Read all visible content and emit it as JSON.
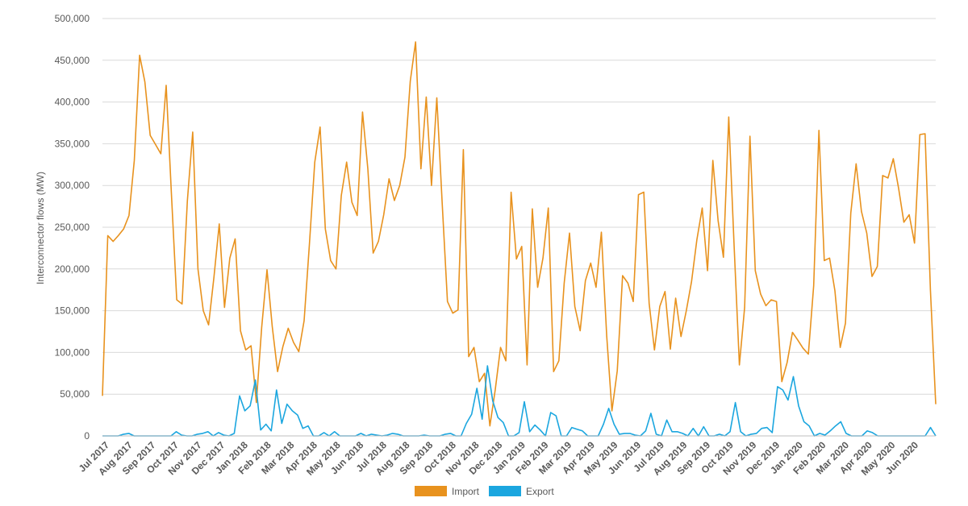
{
  "chart_data": {
    "type": "line",
    "ylabel": "Interconnector flows (MW)",
    "ylim": [
      0,
      500000
    ],
    "y_ticks": [
      "0",
      "50,000",
      "100,000",
      "150,000",
      "200,000",
      "250,000",
      "300,000",
      "350,000",
      "400,000",
      "450,000",
      "500,000"
    ],
    "y_tick_values": [
      0,
      50000,
      100000,
      150000,
      200000,
      250000,
      300000,
      350000,
      400000,
      450000,
      500000
    ],
    "x_tick_labels": [
      "Jul 2017",
      "Aug 2017",
      "Sep 2017",
      "Oct 2017",
      "Nov 2017",
      "Dec 2017",
      "Jan 2018",
      "Feb 2018",
      "Mar 2018",
      "Apr 2018",
      "May 2018",
      "Jun 2018",
      "Jul 2018",
      "Aug 2018",
      "Sep 2018",
      "Oct 2018",
      "Nov 2018",
      "Dec 2018",
      "Jan 2019",
      "Feb 2019",
      "Mar 2019",
      "Apr 2019",
      "May 2019",
      "Jun 2019",
      "Jul 2019",
      "Aug 2019",
      "Sep 2019",
      "Oct 2019",
      "Nov 2019",
      "Dec 2019",
      "Jan 2020",
      "Feb 2020",
      "Mar 2020",
      "Apr 2020",
      "May 2020",
      "Jun 2020"
    ],
    "grid": true,
    "legend_position": "bottom",
    "series": [
      {
        "name": "Import",
        "color": "#E8921E",
        "values": [
          48000,
          240000,
          233000,
          240000,
          248000,
          264000,
          330000,
          456000,
          424000,
          360000,
          349000,
          338000,
          420000,
          290000,
          163000,
          158000,
          282000,
          364000,
          200000,
          150000,
          133000,
          190000,
          254000,
          154000,
          213000,
          236000,
          126000,
          103000,
          108000,
          40000,
          130000,
          199000,
          131000,
          77000,
          107000,
          129000,
          112000,
          101000,
          138000,
          230000,
          328000,
          370000,
          248000,
          210000,
          200000,
          288000,
          328000,
          280000,
          264000,
          388000,
          320000,
          219000,
          233000,
          265000,
          308000,
          282000,
          300000,
          334000,
          425000,
          472000,
          320000,
          406000,
          300000,
          405000,
          280000,
          161000,
          147000,
          151000,
          343000,
          95000,
          106000,
          65000,
          75000,
          12000,
          55000,
          106000,
          90000,
          292000,
          212000,
          227000,
          85000,
          272000,
          178000,
          213000,
          273000,
          77000,
          90000,
          183000,
          243000,
          155000,
          126000,
          186000,
          207000,
          178000,
          244000,
          120000,
          30000,
          78000,
          192000,
          183000,
          161000,
          289000,
          292000,
          159000,
          103000,
          155000,
          173000,
          104000,
          165000,
          119000,
          150000,
          185000,
          235000,
          273000,
          198000,
          330000,
          258000,
          214000,
          382000,
          229000,
          85000,
          154000,
          359000,
          198000,
          170000,
          156000,
          163000,
          161000,
          65000,
          88000,
          124000,
          115000,
          105000,
          98000,
          180000,
          366000,
          210000,
          213000,
          174000,
          106000,
          135000,
          267000,
          326000,
          269000,
          243000,
          191000,
          203000,
          312000,
          309000,
          332000,
          297000,
          256000,
          265000,
          231000,
          361000,
          362000,
          175000,
          38000
        ]
      },
      {
        "name": "Export",
        "color": "#1BA6DF",
        "values": [
          0,
          0,
          0,
          0,
          2000,
          3000,
          0,
          0,
          0,
          0,
          0,
          0,
          0,
          0,
          5000,
          1000,
          0,
          0,
          2000,
          3000,
          5000,
          0,
          4000,
          1000,
          0,
          3000,
          48000,
          30000,
          36000,
          67000,
          7000,
          14000,
          6000,
          55000,
          15000,
          38000,
          30000,
          25000,
          9000,
          12000,
          0,
          0,
          4000,
          0,
          5000,
          0,
          0,
          0,
          0,
          3000,
          0,
          2000,
          1000,
          0,
          1000,
          3000,
          2000,
          0,
          0,
          0,
          0,
          1000,
          0,
          0,
          0,
          2000,
          3000,
          0,
          0,
          15000,
          26000,
          57000,
          20000,
          84000,
          42000,
          22000,
          16000,
          0,
          0,
          4000,
          41000,
          5000,
          13000,
          7000,
          0,
          28000,
          24000,
          0,
          0,
          10000,
          8000,
          6000,
          0,
          0,
          0,
          14000,
          33000,
          14000,
          2000,
          3000,
          3000,
          1000,
          0,
          6000,
          27000,
          2000,
          0,
          19000,
          5000,
          5000,
          3000,
          0,
          9000,
          0,
          11000,
          0,
          0,
          2000,
          0,
          5000,
          40000,
          5000,
          0,
          2000,
          3000,
          9000,
          10000,
          4000,
          59000,
          55000,
          43000,
          71000,
          36000,
          17000,
          12000,
          0,
          3000,
          1000,
          6000,
          12000,
          17000,
          3000,
          0,
          0,
          0,
          6000,
          4000,
          0,
          0,
          0,
          0,
          0,
          0,
          0,
          0,
          0,
          0,
          10000,
          0
        ]
      }
    ]
  }
}
